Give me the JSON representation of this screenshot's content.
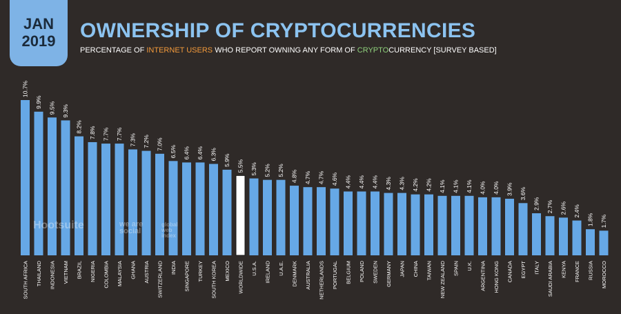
{
  "header": {
    "month": "JAN",
    "year": "2019",
    "title": "OWNERSHIP OF CRYPTOCURRENCIES",
    "subtitle_parts": [
      "PERCENTAGE OF ",
      "INTERNET USERS",
      " WHO REPORT OWNING ANY FORM OF ",
      "CRYPTO",
      "CURRENCY [SURVEY BASED]"
    ]
  },
  "watermarks": {
    "hootsuite": "Hootsuite",
    "wearesocial": "we are social",
    "gwi": "global web index"
  },
  "colors": {
    "background": "#2f2a28",
    "bar": "#66a8e6",
    "highlight_bar": "#ffffff",
    "badge": "#7eb3e6",
    "title": "#8cc3f0",
    "accent_orange": "#f39a3b",
    "accent_green": "#8fd17d"
  },
  "chart_data": {
    "type": "bar",
    "categories": [
      "SOUTH AFRICA",
      "THAILAND",
      "INDONESIA",
      "VIETNAM",
      "BRAZIL",
      "NIGERIA",
      "COLOMBIA",
      "MALAYSIA",
      "GHANA",
      "AUSTRIA",
      "SWITZERLAND",
      "INDIA",
      "SINGAPORE",
      "TURKEY",
      "SOUTH KOREA",
      "MEXICO",
      "WORLDWIDE",
      "U.S.A.",
      "IRELAND",
      "U.A.E.",
      "DENMARK",
      "AUSTRALIA",
      "NETHERLANDS",
      "PORTUGAL",
      "BELGIUM",
      "POLAND",
      "SWEDEN",
      "GERMANY",
      "JAPAN",
      "CHINA",
      "TAIWAN",
      "NEW ZEALAND",
      "SPAIN",
      "U.K.",
      "ARGENTINA",
      "HONG KONG",
      "CANADA",
      "EGYPT",
      "ITALY",
      "SAUDI ARABIA",
      "KENYA",
      "FRANCE",
      "RUSSIA",
      "MOROCCO"
    ],
    "values": [
      10.7,
      9.9,
      9.5,
      9.3,
      8.2,
      7.8,
      7.7,
      7.7,
      7.3,
      7.2,
      7.0,
      6.5,
      6.4,
      6.4,
      6.3,
      5.9,
      5.5,
      5.3,
      5.2,
      5.2,
      4.8,
      4.7,
      4.7,
      4.6,
      4.4,
      4.4,
      4.4,
      4.3,
      4.3,
      4.2,
      4.2,
      4.1,
      4.1,
      4.1,
      4.0,
      4.0,
      3.9,
      3.6,
      2.9,
      2.7,
      2.6,
      2.4,
      1.8,
      1.7
    ],
    "labels": [
      "10.7%",
      "9.9%",
      "9.5%",
      "9.3%",
      "8.2%",
      "7.8%",
      "7.7%",
      "7.7%",
      "7.3%",
      "7.2%",
      "7.0%",
      "6.5%",
      "6.4%",
      "6.4%",
      "6.3%",
      "5.9%",
      "5.5%",
      "5.3%",
      "5.2%",
      "5.2%",
      "4.8%",
      "4.7%",
      "4.7%",
      "4.6%",
      "4.4%",
      "4.4%",
      "4.4%",
      "4.3%",
      "4.3%",
      "4.2%",
      "4.2%",
      "4.1%",
      "4.1%",
      "4.1%",
      "4.0%",
      "4.0%",
      "3.9%",
      "3.6%",
      "2.9%",
      "2.7%",
      "2.6%",
      "2.4%",
      "1.8%",
      "1.7%"
    ],
    "highlight": "WORLDWIDE",
    "ylim": [
      0,
      10.7
    ],
    "grid": false,
    "legend": "none"
  }
}
